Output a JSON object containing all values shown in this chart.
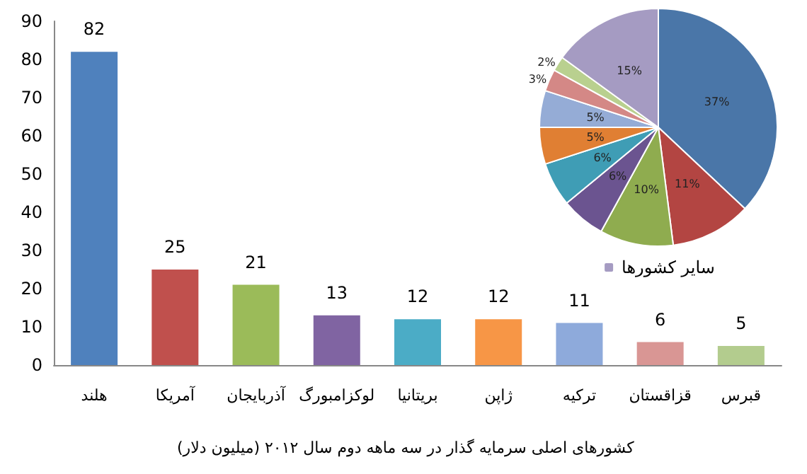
{
  "chart_data": [
    {
      "type": "bar",
      "title": "کشورهای اصلی سرمایه گذار در سه ماهه دوم سال ۲۰۱۲ (میلیون دلار)",
      "categories": [
        "هلند",
        "آمریکا",
        "آذربایجان",
        "لوکزامبورگ",
        "بریتانیا",
        "ژاپن",
        "ترکیه",
        "قزاقستان",
        "قبرس"
      ],
      "values": [
        82,
        25,
        21,
        13,
        12,
        12,
        11,
        6,
        5
      ],
      "colors": [
        "#4f81bd",
        "#c0504d",
        "#9bbb59",
        "#8064a2",
        "#4bacc6",
        "#f79646",
        "#8eaadb",
        "#d99694",
        "#b3cc8e"
      ],
      "ylim": [
        0,
        90
      ],
      "yticks": [
        0,
        10,
        20,
        30,
        40,
        50,
        60,
        70,
        80,
        90
      ],
      "grid": false,
      "data_labels": true
    },
    {
      "type": "pie",
      "categories": [
        null,
        null,
        null,
        null,
        null,
        null,
        null,
        null,
        null,
        "سایر کشورها"
      ],
      "values": [
        37,
        11,
        10,
        6,
        6,
        5,
        5,
        3,
        2,
        15
      ],
      "colors": [
        "#4a76a8",
        "#b34542",
        "#8fac4f",
        "#6b5490",
        "#3f9db5",
        "#e07f33",
        "#95acd6",
        "#d48886",
        "#b9d08f",
        "#a59bc2"
      ],
      "value_labels": [
        "37%",
        "11%",
        "10%",
        "6%",
        "6%",
        "5%",
        "5%",
        "3%",
        "2%",
        "15%"
      ],
      "legend": "bottom"
    }
  ]
}
